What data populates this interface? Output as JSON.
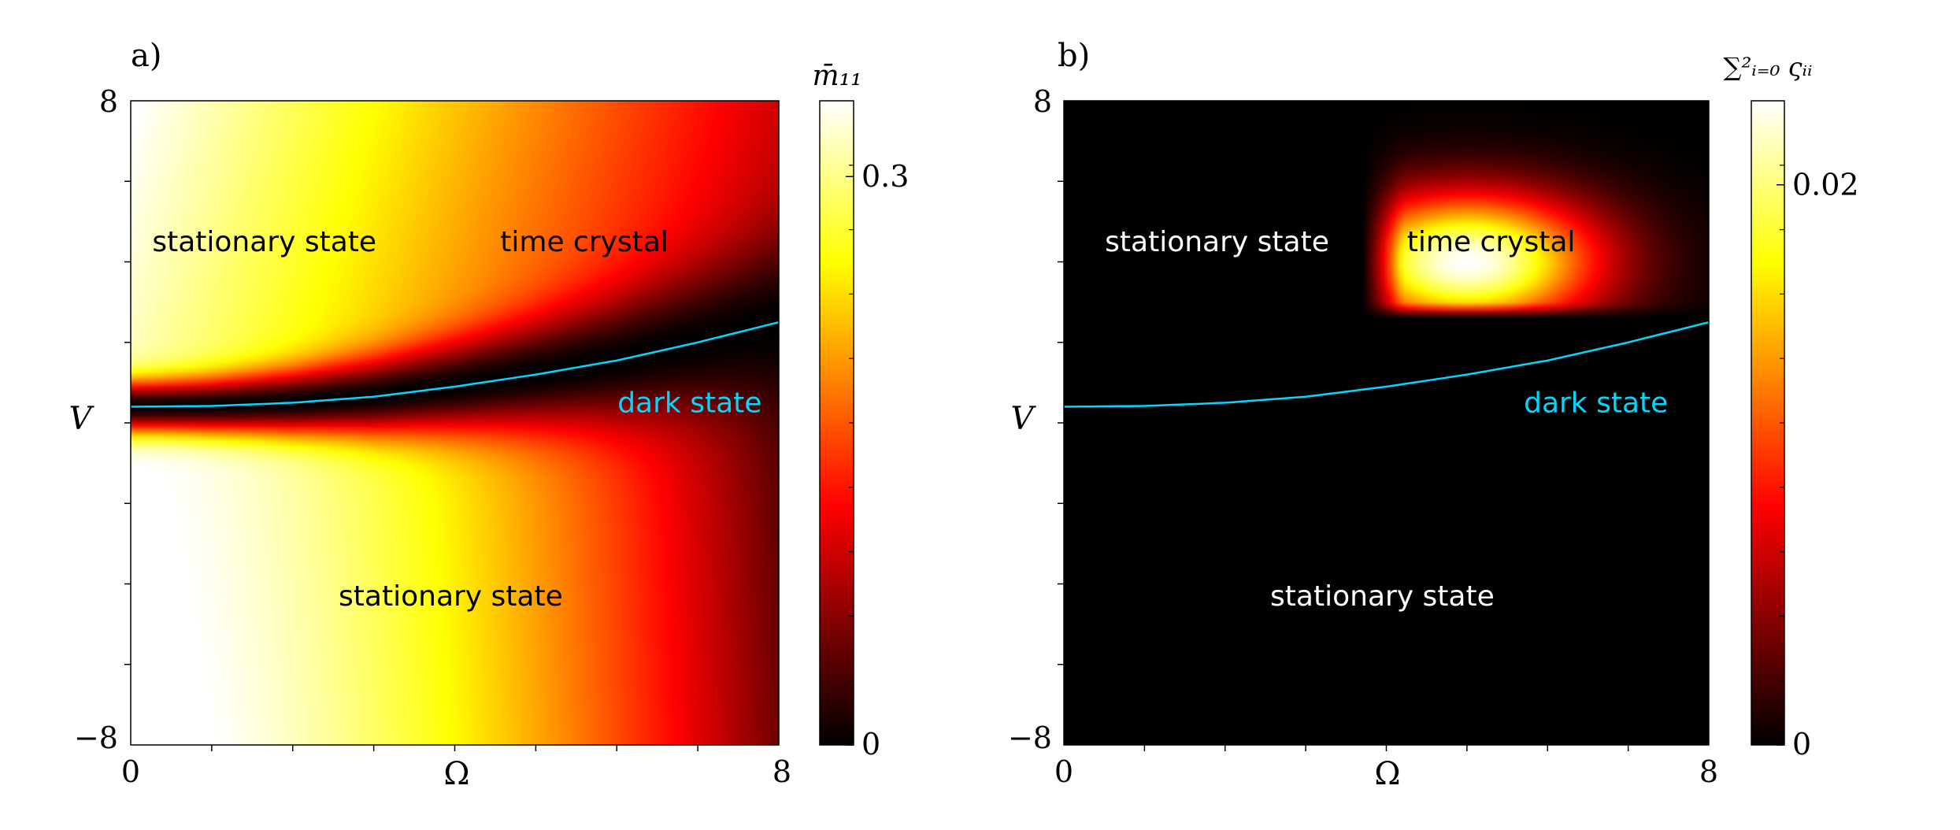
{
  "chart_data": [
    {
      "type": "heatmap",
      "panel_label": "a)",
      "xlabel": "Ω",
      "ylabel": "V",
      "xlim": [
        0,
        8
      ],
      "ylim": [
        -8,
        8
      ],
      "x_tick_labels": [
        "0",
        "8"
      ],
      "y_tick_labels": [
        "8",
        "−8"
      ],
      "colorbar": {
        "label": "m̄₁₁",
        "range": [
          0,
          0.34
        ],
        "tick_values": [
          0,
          0.3
        ],
        "tick_labels": [
          "0",
          "0.3"
        ],
        "colormap": "hot"
      },
      "boundary_curve": {
        "name": "dark state",
        "color": "#00d8ff",
        "x": [
          0,
          1,
          2,
          3,
          4,
          5,
          6,
          7,
          8
        ],
        "y": [
          0.4,
          0.42,
          0.5,
          0.65,
          0.9,
          1.2,
          1.55,
          2.0,
          2.5
        ]
      },
      "annotations": [
        {
          "text": "stationary state",
          "x": 1.65,
          "y": 4.5,
          "color": "#000000"
        },
        {
          "text": "time crystal",
          "x": 5.6,
          "y": 4.5,
          "color": "#000000"
        },
        {
          "text": "dark state",
          "x": 6.9,
          "y": 0.5,
          "color": "#00d8ff"
        },
        {
          "text": "stationary state",
          "x": 3.95,
          "y": -4.3,
          "color": "#000000"
        }
      ]
    },
    {
      "type": "heatmap",
      "panel_label": "b)",
      "xlabel": "Ω",
      "ylabel": "V",
      "xlim": [
        0,
        8
      ],
      "ylim": [
        -8,
        8
      ],
      "x_tick_labels": [
        "0",
        "8"
      ],
      "y_tick_labels": [
        "8",
        "−8"
      ],
      "colorbar": {
        "label": "∑²ᵢ₌₀ ςᵢᵢ",
        "range": [
          0,
          0.023
        ],
        "tick_values": [
          0,
          0.02
        ],
        "tick_labels": [
          "0",
          "0.02"
        ],
        "colormap": "hot"
      },
      "time_crystal_region": {
        "x": [
          3.7,
          8.0
        ],
        "y": [
          2.6,
          8.0
        ],
        "peak_x": 5.0,
        "peak_y": 4.0,
        "peak_value": 0.023
      },
      "boundary_curve": {
        "name": "dark state",
        "color": "#00d8ff",
        "x": [
          0,
          1,
          2,
          3,
          4,
          5,
          6,
          7,
          8
        ],
        "y": [
          0.4,
          0.42,
          0.5,
          0.65,
          0.9,
          1.2,
          1.55,
          2.0,
          2.5
        ]
      },
      "annotations": [
        {
          "text": "stationary state",
          "x": 1.9,
          "y": 4.5,
          "color": "#ffffff"
        },
        {
          "text": "time crystal",
          "x": 5.3,
          "y": 4.5,
          "color": "#000000"
        },
        {
          "text": "dark state",
          "x": 6.6,
          "y": 0.5,
          "color": "#00d8ff"
        },
        {
          "text": "stationary state",
          "x": 3.95,
          "y": -4.3,
          "color": "#ffffff"
        }
      ]
    }
  ]
}
